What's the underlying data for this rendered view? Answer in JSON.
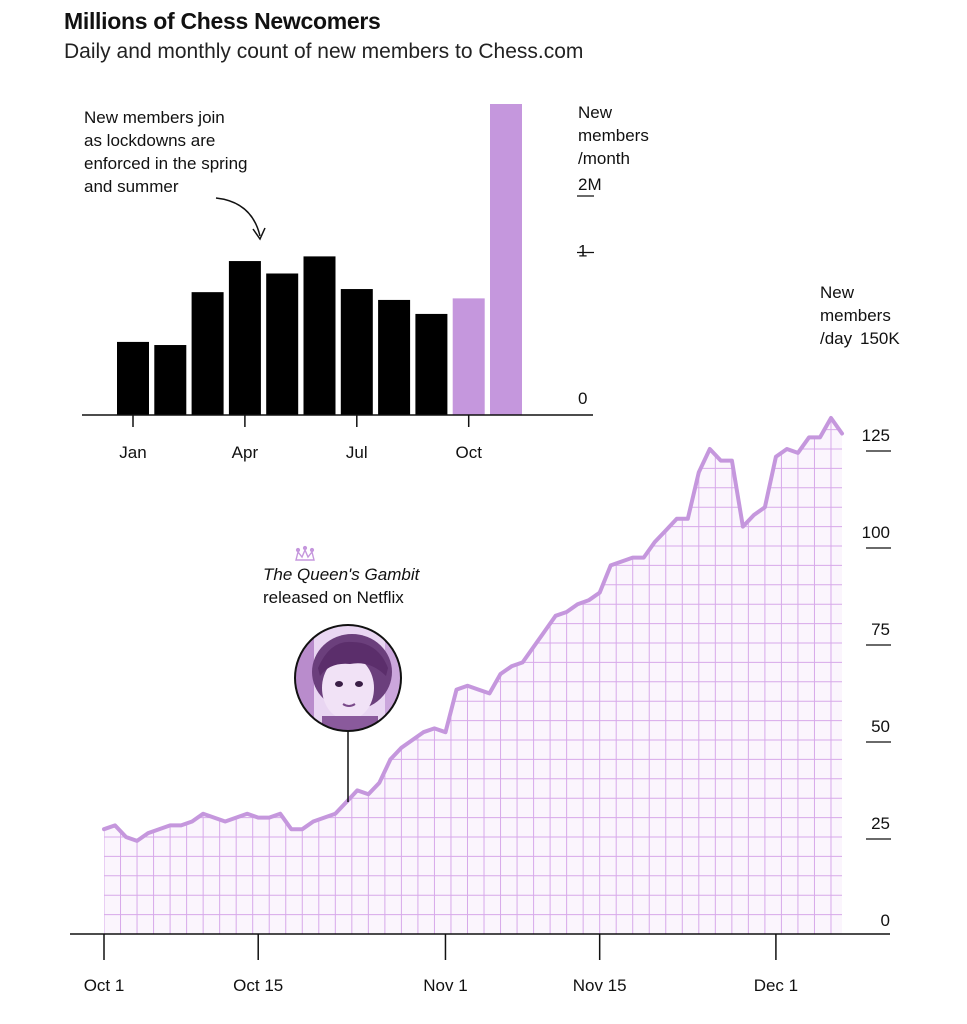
{
  "title": "Millions of Chess Newcomers",
  "subtitle": "Daily and monthly count of new members to Chess.com",
  "colors": {
    "accent": "#c597dd",
    "bar": "#000000",
    "line": "#c597dd",
    "grid": "#d7a9ea"
  },
  "chart_data": [
    {
      "type": "bar",
      "title": "New members/month",
      "ylabel_lines": [
        "New",
        "members",
        "/month"
      ],
      "ytick_labels": [
        "2M",
        "1",
        "0"
      ],
      "yticks": [
        2,
        1,
        0
      ],
      "ylim": [
        0,
        2
      ],
      "units": "millions",
      "categories": [
        "Jan",
        "Feb",
        "Mar",
        "Apr",
        "May",
        "Jun",
        "Jul",
        "Aug",
        "Sep",
        "Oct",
        "Nov"
      ],
      "values": [
        0.47,
        0.45,
        0.79,
        0.99,
        0.91,
        1.02,
        0.81,
        0.74,
        0.65,
        0.75,
        2.0
      ],
      "highlight": [
        "Oct",
        "Nov"
      ],
      "xtick_labels": [
        "Jan",
        "Apr",
        "Jul",
        "Oct"
      ],
      "annotation_lines": [
        "New members join",
        "as lockdowns are",
        "enforced in the spring",
        "and summer"
      ]
    },
    {
      "type": "area",
      "title": "New members/day",
      "ylabel_lines": [
        "New",
        "members",
        "/day"
      ],
      "ytop_label": "150K",
      "ytick_labels": [
        "125",
        "100",
        "75",
        "50",
        "25",
        "0"
      ],
      "yticks": [
        125,
        100,
        75,
        50,
        25,
        0
      ],
      "ylim": [
        0,
        150
      ],
      "units": "thousands",
      "xtick_labels": [
        "Oct 1",
        "Oct 15",
        "Nov 1",
        "Nov 15",
        "Dec 1"
      ],
      "xtick_days": [
        0,
        14,
        31,
        45,
        61
      ],
      "values": [
        27,
        28,
        25,
        24,
        26,
        27,
        28,
        28,
        29,
        31,
        30,
        29,
        30,
        31,
        30,
        30,
        31,
        27,
        27,
        29,
        30,
        31,
        34,
        37,
        36,
        39,
        45,
        48,
        50,
        52,
        53,
        52,
        63,
        64,
        63,
        62,
        67,
        69,
        70,
        74,
        78,
        82,
        83,
        85,
        86,
        88,
        95,
        96,
        97,
        97,
        101,
        104,
        107,
        107,
        119,
        125,
        122,
        122,
        105,
        108,
        110,
        123,
        125,
        124,
        128,
        128,
        133,
        129
      ],
      "annotation_lines": [
        "The Queen's Gambit",
        "released on Netflix"
      ],
      "annotation_day": 22
    }
  ]
}
